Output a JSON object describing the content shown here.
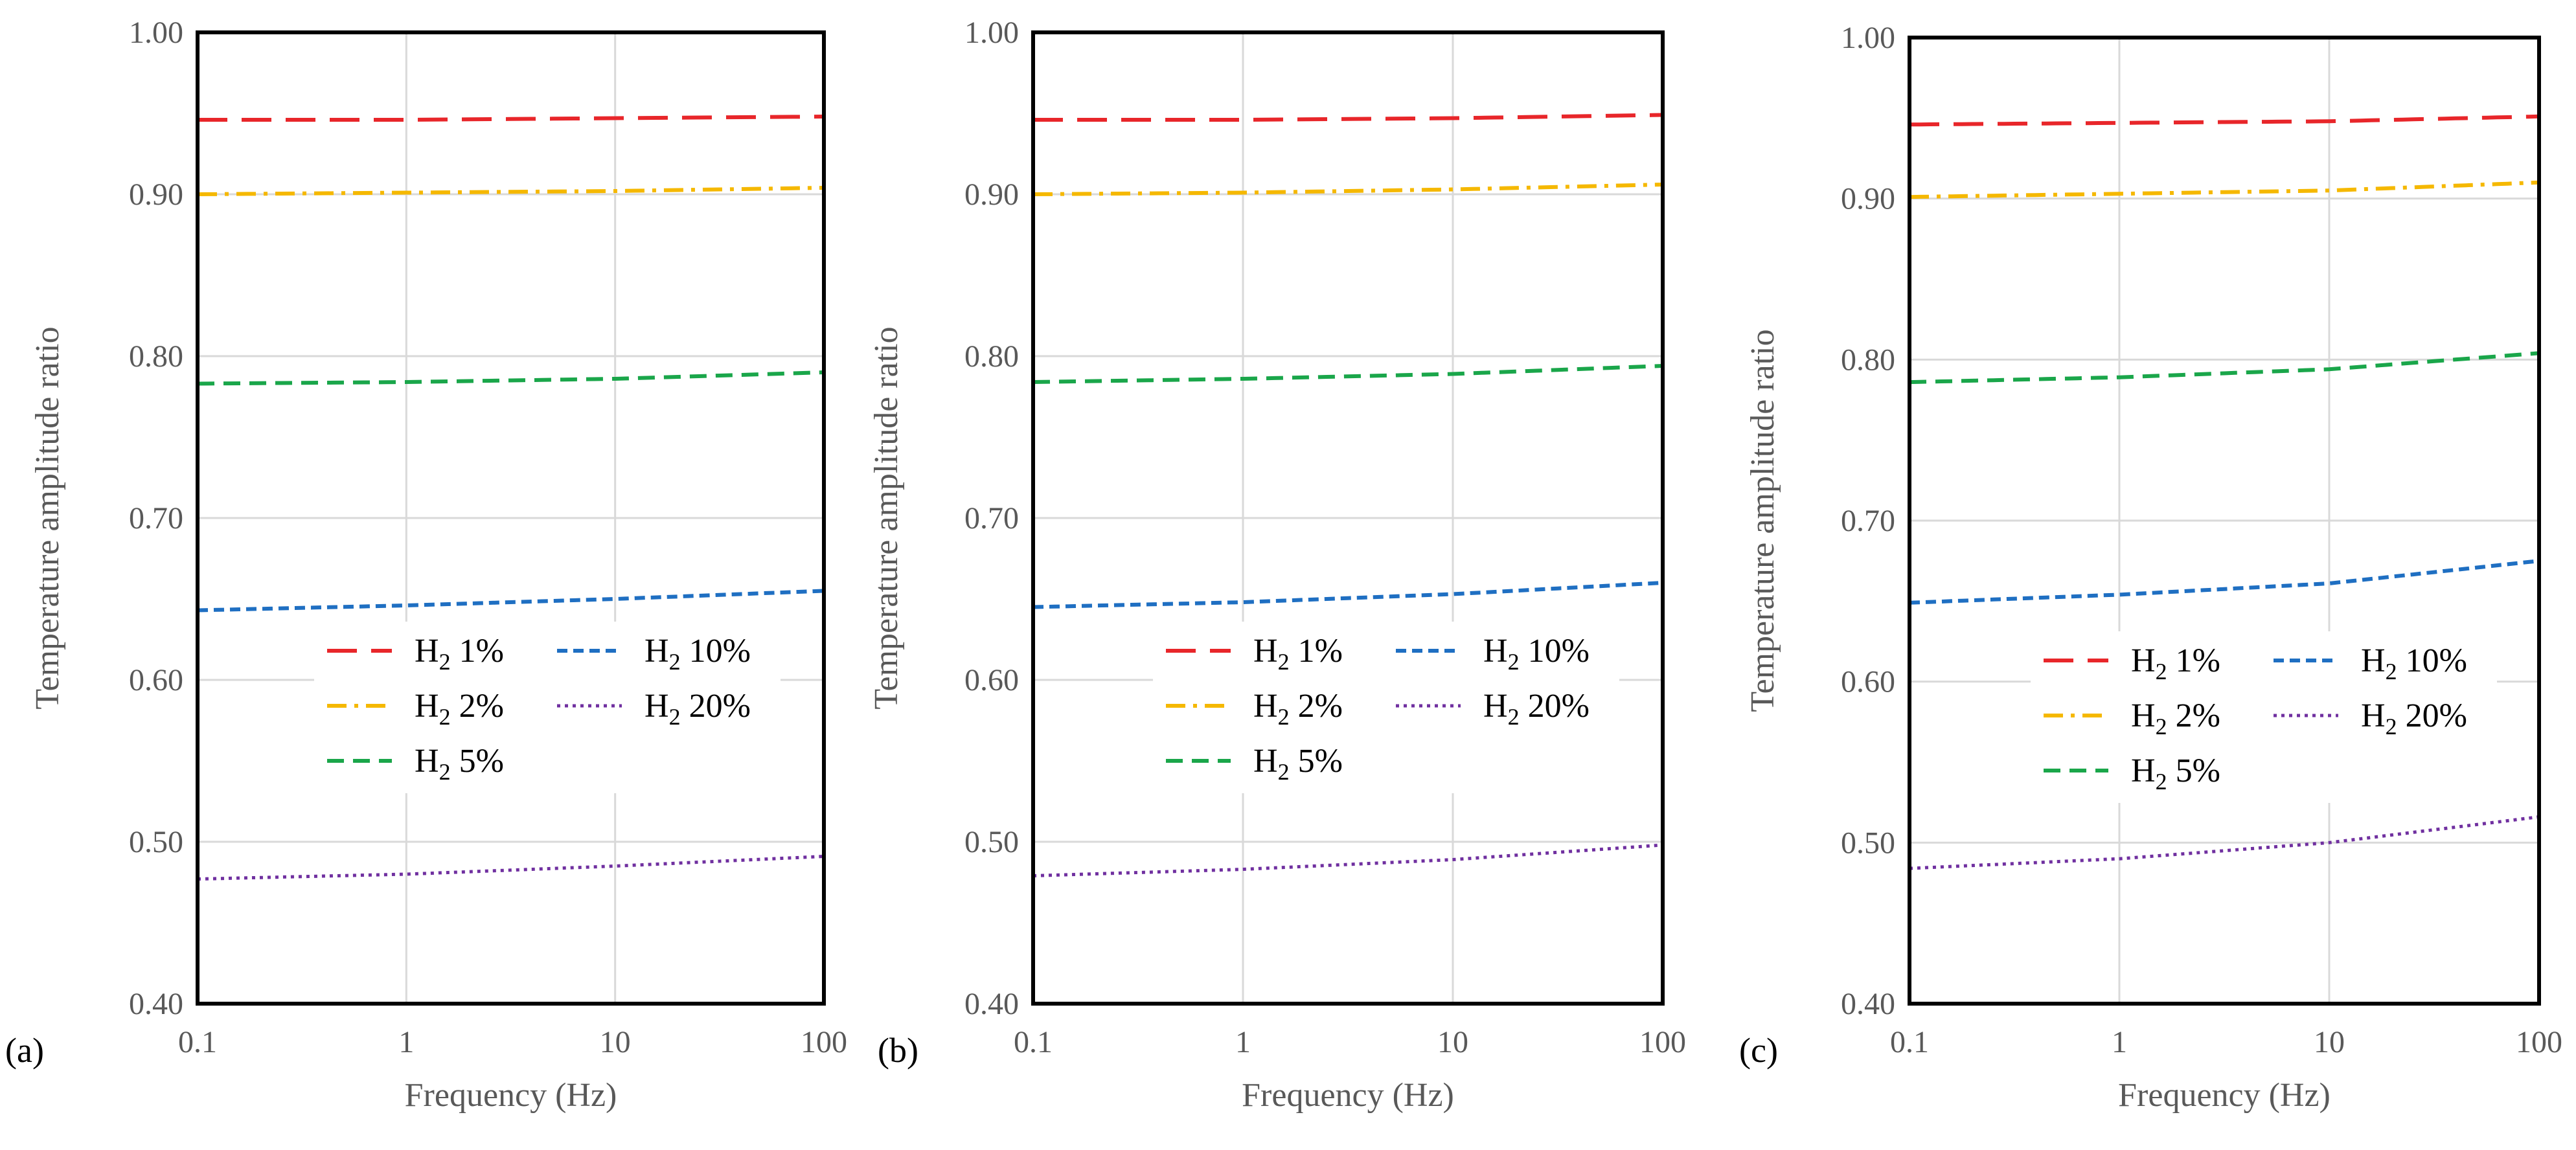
{
  "chart_data": [
    {
      "type": "line",
      "panel_label": "(a)",
      "xlabel": "Frequency (Hz)",
      "ylabel": "Temperature amplitude ratio",
      "xscale": "log",
      "xlim": [
        0.1,
        100
      ],
      "ylim": [
        0.4,
        1.0
      ],
      "x_ticks": [
        "0.1",
        "1",
        "10",
        "100"
      ],
      "y_ticks": [
        "0.40",
        "0.50",
        "0.60",
        "0.70",
        "0.80",
        "0.90",
        "1.00"
      ],
      "legend_location": "center",
      "x": [
        0.1,
        1,
        10,
        100
      ],
      "series": [
        {
          "name": "H2 1%",
          "label_main": "H",
          "label_sub": "2",
          "label_tail": " 1%",
          "color": "#e8262a",
          "dash": "long-dash",
          "values": [
            0.946,
            0.946,
            0.947,
            0.948
          ]
        },
        {
          "name": "H2 2%",
          "label_main": "H",
          "label_sub": "2",
          "label_tail": " 2%",
          "color": "#f5b800",
          "dash": "dash-dot",
          "values": [
            0.9,
            0.901,
            0.902,
            0.904
          ]
        },
        {
          "name": "H2 5%",
          "label_main": "H",
          "label_sub": "2",
          "label_tail": " 5%",
          "color": "#1aa64a",
          "dash": "dash",
          "values": [
            0.783,
            0.784,
            0.786,
            0.79
          ]
        },
        {
          "name": "H2 10%",
          "label_main": "H",
          "label_sub": "2",
          "label_tail": " 10%",
          "color": "#1f6fc2",
          "dash": "short-dash",
          "values": [
            0.643,
            0.646,
            0.65,
            0.655
          ]
        },
        {
          "name": "H2 20%",
          "label_main": "H",
          "label_sub": "2",
          "label_tail": " 20%",
          "color": "#7030a0",
          "dash": "dot",
          "values": [
            0.477,
            0.48,
            0.485,
            0.491
          ]
        }
      ]
    },
    {
      "type": "line",
      "panel_label": "(b)",
      "xlabel": "Frequency (Hz)",
      "ylabel": "Temperature amplitude ratio",
      "xscale": "log",
      "xlim": [
        0.1,
        100
      ],
      "ylim": [
        0.4,
        1.0
      ],
      "x_ticks": [
        "0.1",
        "1",
        "10",
        "100"
      ],
      "y_ticks": [
        "0.40",
        "0.50",
        "0.60",
        "0.70",
        "0.80",
        "0.90",
        "1.00"
      ],
      "legend_location": "center",
      "x": [
        0.1,
        1,
        10,
        100
      ],
      "series": [
        {
          "name": "H2 1%",
          "label_main": "H",
          "label_sub": "2",
          "label_tail": " 1%",
          "color": "#e8262a",
          "dash": "long-dash",
          "values": [
            0.946,
            0.946,
            0.947,
            0.949
          ]
        },
        {
          "name": "H2 2%",
          "label_main": "H",
          "label_sub": "2",
          "label_tail": " 2%",
          "color": "#f5b800",
          "dash": "dash-dot",
          "values": [
            0.9,
            0.901,
            0.903,
            0.906
          ]
        },
        {
          "name": "H2 5%",
          "label_main": "H",
          "label_sub": "2",
          "label_tail": " 5%",
          "color": "#1aa64a",
          "dash": "dash",
          "values": [
            0.784,
            0.786,
            0.789,
            0.794
          ]
        },
        {
          "name": "H2 10%",
          "label_main": "H",
          "label_sub": "2",
          "label_tail": " 10%",
          "color": "#1f6fc2",
          "dash": "short-dash",
          "values": [
            0.645,
            0.648,
            0.653,
            0.66
          ]
        },
        {
          "name": "H2 20%",
          "label_main": "H",
          "label_sub": "2",
          "label_tail": " 20%",
          "color": "#7030a0",
          "dash": "dot",
          "values": [
            0.479,
            0.483,
            0.489,
            0.498
          ]
        }
      ]
    },
    {
      "type": "line",
      "panel_label": "(c)",
      "xlabel": "Frequency (Hz)",
      "ylabel": "Temperature amplitude ratio",
      "xscale": "log",
      "xlim": [
        0.1,
        100
      ],
      "ylim": [
        0.4,
        1.0
      ],
      "x_ticks": [
        "0.1",
        "1",
        "10",
        "100"
      ],
      "y_ticks": [
        "0.40",
        "0.50",
        "0.60",
        "0.70",
        "0.80",
        "0.90",
        "1.00"
      ],
      "legend_location": "center",
      "x": [
        0.1,
        1,
        10,
        100
      ],
      "series": [
        {
          "name": "H2 1%",
          "label_main": "H",
          "label_sub": "2",
          "label_tail": " 1%",
          "color": "#e8262a",
          "dash": "long-dash",
          "values": [
            0.946,
            0.947,
            0.948,
            0.951
          ]
        },
        {
          "name": "H2 2%",
          "label_main": "H",
          "label_sub": "2",
          "label_tail": " 2%",
          "color": "#f5b800",
          "dash": "dash-dot",
          "values": [
            0.901,
            0.903,
            0.905,
            0.91
          ]
        },
        {
          "name": "H2 5%",
          "label_main": "H",
          "label_sub": "2",
          "label_tail": " 5%",
          "color": "#1aa64a",
          "dash": "dash",
          "values": [
            0.786,
            0.789,
            0.794,
            0.804
          ]
        },
        {
          "name": "H2 10%",
          "label_main": "H",
          "label_sub": "2",
          "label_tail": " 10%",
          "color": "#1f6fc2",
          "dash": "short-dash",
          "values": [
            0.649,
            0.654,
            0.661,
            0.675
          ]
        },
        {
          "name": "H2 20%",
          "label_main": "H",
          "label_sub": "2",
          "label_tail": " 20%",
          "color": "#7030a0",
          "dash": "dot",
          "values": [
            0.484,
            0.49,
            0.5,
            0.516
          ]
        }
      ]
    }
  ]
}
